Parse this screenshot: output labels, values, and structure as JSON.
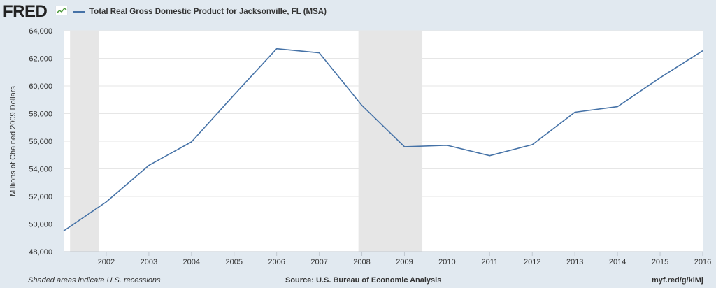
{
  "header": {
    "logo_text": "FRED",
    "logo_icon": "fred-sparkline-icon"
  },
  "chart_data": {
    "type": "line",
    "title": "",
    "xlabel": "",
    "ylabel": "Millions of Chained 2009 Dollars",
    "x": [
      2001,
      2002,
      2003,
      2004,
      2005,
      2006,
      2007,
      2008,
      2009,
      2010,
      2011,
      2012,
      2013,
      2014,
      2015,
      2016
    ],
    "series": [
      {
        "name": "Total Real Gross Domestic Product for Jacksonville, FL (MSA)",
        "color": "#4572a7",
        "values": [
          49500,
          51600,
          54250,
          55950,
          59350,
          62700,
          62400,
          58600,
          55600,
          55700,
          54950,
          55750,
          58100,
          58500,
          60600,
          62550
        ]
      }
    ],
    "xlim": [
      2001,
      2016
    ],
    "ylim": [
      48000,
      64000
    ],
    "yticks": [
      48000,
      50000,
      52000,
      54000,
      56000,
      58000,
      60000,
      62000,
      64000
    ],
    "ytick_labels": [
      "48,000",
      "50,000",
      "52,000",
      "54,000",
      "56,000",
      "58,000",
      "60,000",
      "62,000",
      "64,000"
    ],
    "xticks": [
      2002,
      2003,
      2004,
      2005,
      2006,
      2007,
      2008,
      2009,
      2010,
      2011,
      2012,
      2013,
      2014,
      2015,
      2016
    ],
    "xtick_labels": [
      "2002",
      "2003",
      "2004",
      "2005",
      "2006",
      "2007",
      "2008",
      "2009",
      "2010",
      "2011",
      "2012",
      "2013",
      "2014",
      "2015",
      "2016"
    ],
    "recessions": [
      {
        "start": 2001.15,
        "end": 2001.83
      },
      {
        "start": 2007.92,
        "end": 2009.42
      }
    ],
    "grid": true,
    "legend_position": "top-left",
    "colors": {
      "plot_bg": "#ffffff",
      "grid": "#e6e6e6",
      "recession": "#e6e6e6",
      "line": "#4572a7"
    }
  },
  "footer": {
    "note": "Shaded areas indicate U.S. recessions",
    "source": "Source: U.S. Bureau of Economic Analysis",
    "link": "myf.red/g/kiMj"
  }
}
